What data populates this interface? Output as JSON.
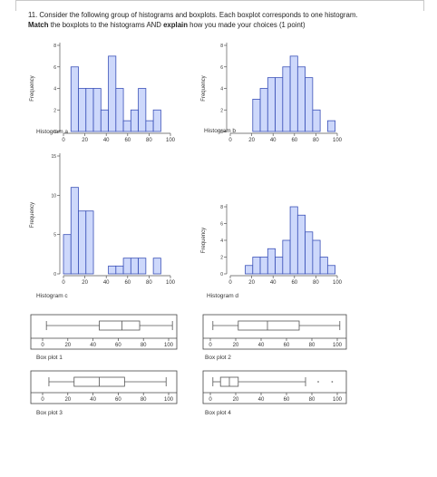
{
  "question": {
    "line1": "11. Consider the following group of histograms and boxplots. Each boxplot corresponds to one histogram.",
    "line2_bold1": "Match",
    "line2_mid": " the boxplots to the histograms AND ",
    "line2_bold2": "explain",
    "line2_end": " how you made your choices (1 point)"
  },
  "colors": {
    "bar_fill": "#cdd8fb",
    "bar_stroke": "#3b51b8",
    "axis": "#555555",
    "box": "#555555"
  },
  "chart_data": [
    {
      "type": "bar",
      "title": "Histogram a",
      "ylabel": "Frequency",
      "x_ticks": [
        0,
        20,
        40,
        60,
        80,
        100
      ],
      "y_ticks": [
        0,
        2,
        4,
        6,
        8
      ],
      "ylim": [
        0,
        8
      ],
      "bin_width": 7,
      "bins": [
        {
          "x": 7,
          "count": 6
        },
        {
          "x": 14,
          "count": 4
        },
        {
          "x": 21,
          "count": 4
        },
        {
          "x": 28,
          "count": 4
        },
        {
          "x": 35,
          "count": 2
        },
        {
          "x": 42,
          "count": 7
        },
        {
          "x": 49,
          "count": 4
        },
        {
          "x": 56,
          "count": 1
        },
        {
          "x": 63,
          "count": 2
        },
        {
          "x": 70,
          "count": 4
        },
        {
          "x": 77,
          "count": 1
        },
        {
          "x": 84,
          "count": 2
        }
      ]
    },
    {
      "type": "bar",
      "title": "Histogram b",
      "ylabel": "Frequency",
      "x_ticks": [
        0,
        20,
        40,
        60,
        80,
        100
      ],
      "y_ticks": [
        0,
        2,
        4,
        6,
        8
      ],
      "ylim": [
        0,
        8
      ],
      "bin_width": 7,
      "bins": [
        {
          "x": 21,
          "count": 3
        },
        {
          "x": 28,
          "count": 4
        },
        {
          "x": 35,
          "count": 5
        },
        {
          "x": 42,
          "count": 5
        },
        {
          "x": 49,
          "count": 6
        },
        {
          "x": 56,
          "count": 7
        },
        {
          "x": 63,
          "count": 6
        },
        {
          "x": 70,
          "count": 5
        },
        {
          "x": 77,
          "count": 2
        },
        {
          "x": 84,
          "count": 0
        },
        {
          "x": 91,
          "count": 1
        }
      ]
    },
    {
      "type": "bar",
      "title": "Histogram c",
      "ylabel": "Frequency",
      "x_ticks": [
        0,
        20,
        40,
        60,
        80,
        100
      ],
      "y_ticks": [
        0,
        5,
        10,
        15
      ],
      "ylim": [
        0,
        15
      ],
      "bin_width": 7,
      "bins": [
        {
          "x": 0,
          "count": 5
        },
        {
          "x": 7,
          "count": 11
        },
        {
          "x": 14,
          "count": 8
        },
        {
          "x": 21,
          "count": 8
        },
        {
          "x": 28,
          "count": 0
        },
        {
          "x": 35,
          "count": 0
        },
        {
          "x": 42,
          "count": 1
        },
        {
          "x": 49,
          "count": 1
        },
        {
          "x": 56,
          "count": 2
        },
        {
          "x": 63,
          "count": 2
        },
        {
          "x": 70,
          "count": 2
        },
        {
          "x": 77,
          "count": 0
        },
        {
          "x": 84,
          "count": 2
        }
      ]
    },
    {
      "type": "bar",
      "title": "Histogram d",
      "ylabel": "Frequency",
      "x_ticks": [
        0,
        20,
        40,
        60,
        80,
        100
      ],
      "y_ticks": [
        0,
        2,
        4,
        6,
        8
      ],
      "ylim": [
        0,
        8
      ],
      "bin_width": 7,
      "bins": [
        {
          "x": 14,
          "count": 1
        },
        {
          "x": 21,
          "count": 2
        },
        {
          "x": 28,
          "count": 2
        },
        {
          "x": 35,
          "count": 3
        },
        {
          "x": 42,
          "count": 2
        },
        {
          "x": 49,
          "count": 4
        },
        {
          "x": 56,
          "count": 8
        },
        {
          "x": 63,
          "count": 7
        },
        {
          "x": 70,
          "count": 5
        },
        {
          "x": 77,
          "count": 4
        },
        {
          "x": 84,
          "count": 2
        },
        {
          "x": 91,
          "count": 1
        }
      ]
    },
    {
      "type": "boxplot",
      "title": "Box plot 1",
      "x_ticks": [
        0,
        20,
        40,
        60,
        80,
        100
      ],
      "min": 3,
      "q1": 45,
      "median": 63,
      "q3": 77,
      "max": 103,
      "outliers": []
    },
    {
      "type": "boxplot",
      "title": "Box plot 2",
      "x_ticks": [
        0,
        20,
        40,
        60,
        80,
        100
      ],
      "min": 2,
      "q1": 22,
      "median": 45,
      "q3": 70,
      "max": 102,
      "outliers": []
    },
    {
      "type": "boxplot",
      "title": "Box plot 3",
      "x_ticks": [
        0,
        20,
        40,
        60,
        80,
        100
      ],
      "min": 5,
      "q1": 25,
      "median": 45,
      "q3": 65,
      "max": 98,
      "outliers": []
    },
    {
      "type": "boxplot",
      "title": "Box plot 4",
      "x_ticks": [
        0,
        20,
        40,
        60,
        80,
        100
      ],
      "min": 2,
      "q1": 8,
      "median": 15,
      "q3": 22,
      "max": 75,
      "outliers": [
        85,
        96
      ]
    }
  ]
}
